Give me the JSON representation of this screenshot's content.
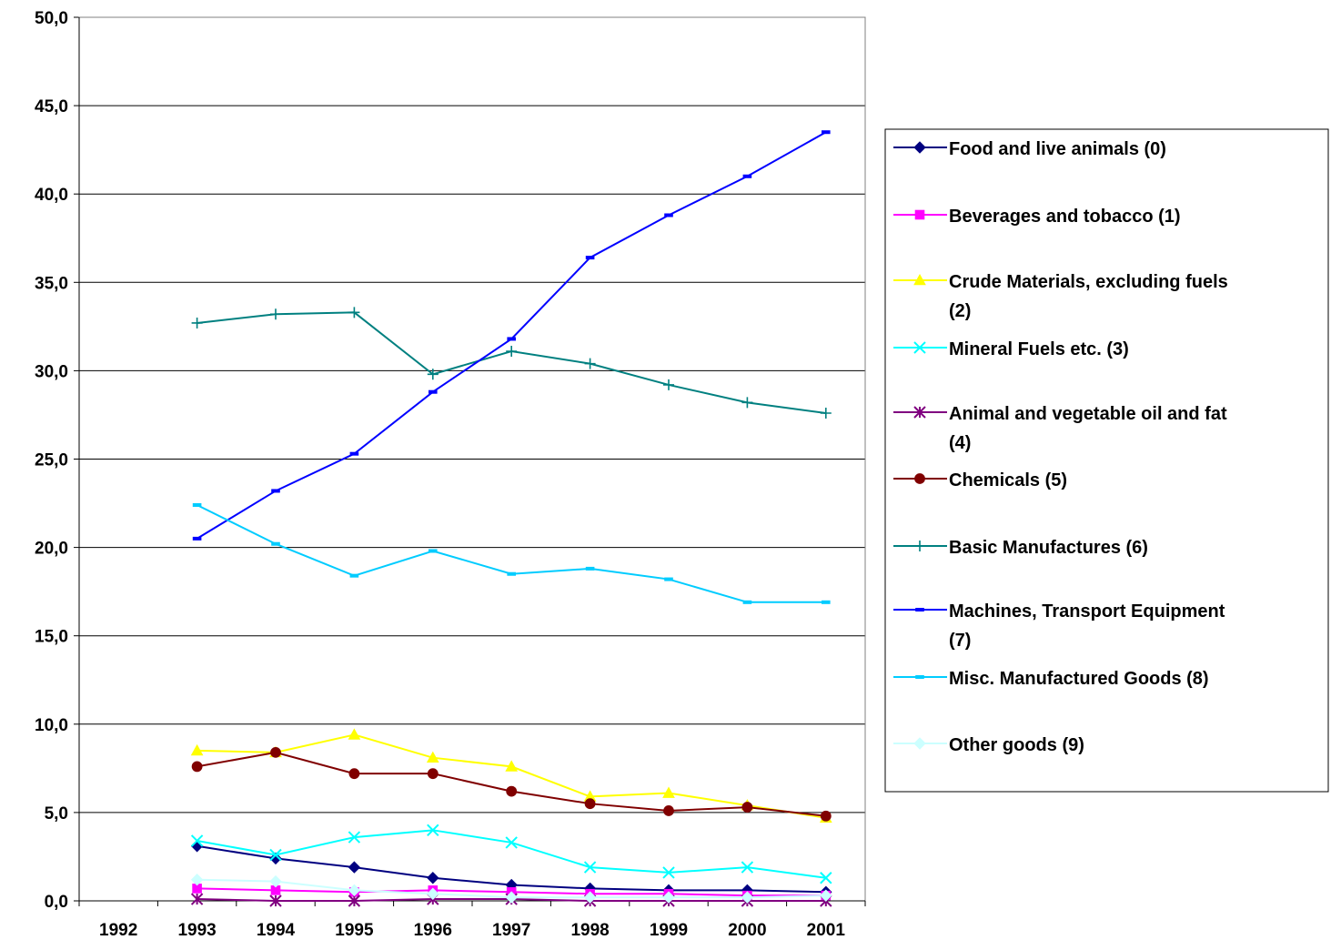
{
  "chart_data": {
    "type": "line",
    "title": "",
    "xlabel": "",
    "ylabel": "",
    "ylim": [
      0,
      50
    ],
    "y_ticks": [
      "0,0",
      "5,0",
      "10,0",
      "15,0",
      "20,0",
      "25,0",
      "30,0",
      "35,0",
      "40,0",
      "45,0",
      "50,0"
    ],
    "categories": [
      "1992",
      "1993",
      "1994",
      "1995",
      "1996",
      "1997",
      "1998",
      "1999",
      "2000",
      "2001"
    ],
    "grid": "horizontal",
    "legend_position": "right",
    "series": [
      {
        "name": "Food and live animals (0)",
        "color": "#000080",
        "marker": "diamond",
        "values": [
          null,
          3.1,
          2.4,
          1.9,
          1.3,
          0.9,
          0.7,
          0.6,
          0.6,
          0.5
        ]
      },
      {
        "name": "Beverages and tobacco (1)",
        "color": "#ff00ff",
        "marker": "square",
        "values": [
          null,
          0.7,
          0.6,
          0.5,
          0.6,
          0.5,
          0.4,
          0.4,
          0.3,
          0.3
        ]
      },
      {
        "name": "Crude Materials, excluding fuels (2)",
        "color": "#ffff00",
        "marker": "triangle",
        "values": [
          null,
          8.5,
          8.4,
          9.4,
          8.1,
          7.6,
          5.9,
          6.1,
          5.4,
          4.7
        ]
      },
      {
        "name": "Mineral Fuels etc. (3)",
        "color": "#00ffff",
        "marker": "x",
        "values": [
          null,
          3.4,
          2.6,
          3.6,
          4.0,
          3.3,
          1.9,
          1.6,
          1.9,
          1.3
        ]
      },
      {
        "name": "Animal and vegetable oil and fat (4)",
        "color": "#800080",
        "marker": "star",
        "values": [
          null,
          0.1,
          0.0,
          0.0,
          0.1,
          0.1,
          0.0,
          0.0,
          0.0,
          0.0
        ]
      },
      {
        "name": "Chemicals (5)",
        "color": "#800000",
        "marker": "circle",
        "values": [
          null,
          7.6,
          8.4,
          7.2,
          7.2,
          6.2,
          5.5,
          5.1,
          5.3,
          4.8
        ]
      },
      {
        "name": "Basic Manufactures (6)",
        "color": "#008080",
        "marker": "plus",
        "values": [
          null,
          32.7,
          33.2,
          33.3,
          29.8,
          31.1,
          30.4,
          29.2,
          28.2,
          27.6
        ]
      },
      {
        "name": "Machines, Transport Equipment (7)",
        "color": "#0000ff",
        "marker": "dash",
        "values": [
          null,
          20.5,
          23.2,
          25.3,
          28.8,
          31.8,
          36.4,
          38.8,
          41.0,
          43.5
        ]
      },
      {
        "name": "Misc. Manufactured Goods (8)",
        "color": "#00ccff",
        "marker": "dash",
        "values": [
          null,
          22.4,
          20.2,
          18.4,
          19.8,
          18.5,
          18.8,
          18.2,
          16.9,
          16.9
        ]
      },
      {
        "name": "Other goods (9)",
        "color": "#ccffff",
        "marker": "diamond",
        "values": [
          null,
          1.2,
          1.1,
          0.6,
          0.4,
          0.2,
          0.2,
          0.2,
          0.2,
          0.3
        ]
      }
    ],
    "legend_lines": [
      [
        "Food and live animals (0)"
      ],
      [
        "Beverages and tobacco (1)"
      ],
      [
        "Crude Materials, excluding fuels",
        "(2)"
      ],
      [
        "Mineral Fuels etc. (3)"
      ],
      [
        "Animal and vegetable oil and fat",
        "(4)"
      ],
      [
        "Chemicals (5)"
      ],
      [
        "Basic Manufactures (6)"
      ],
      [
        "Machines, Transport Equipment",
        "(7)"
      ],
      [
        "Misc. Manufactured Goods (8)"
      ],
      [
        "Other goods (9)"
      ]
    ]
  }
}
